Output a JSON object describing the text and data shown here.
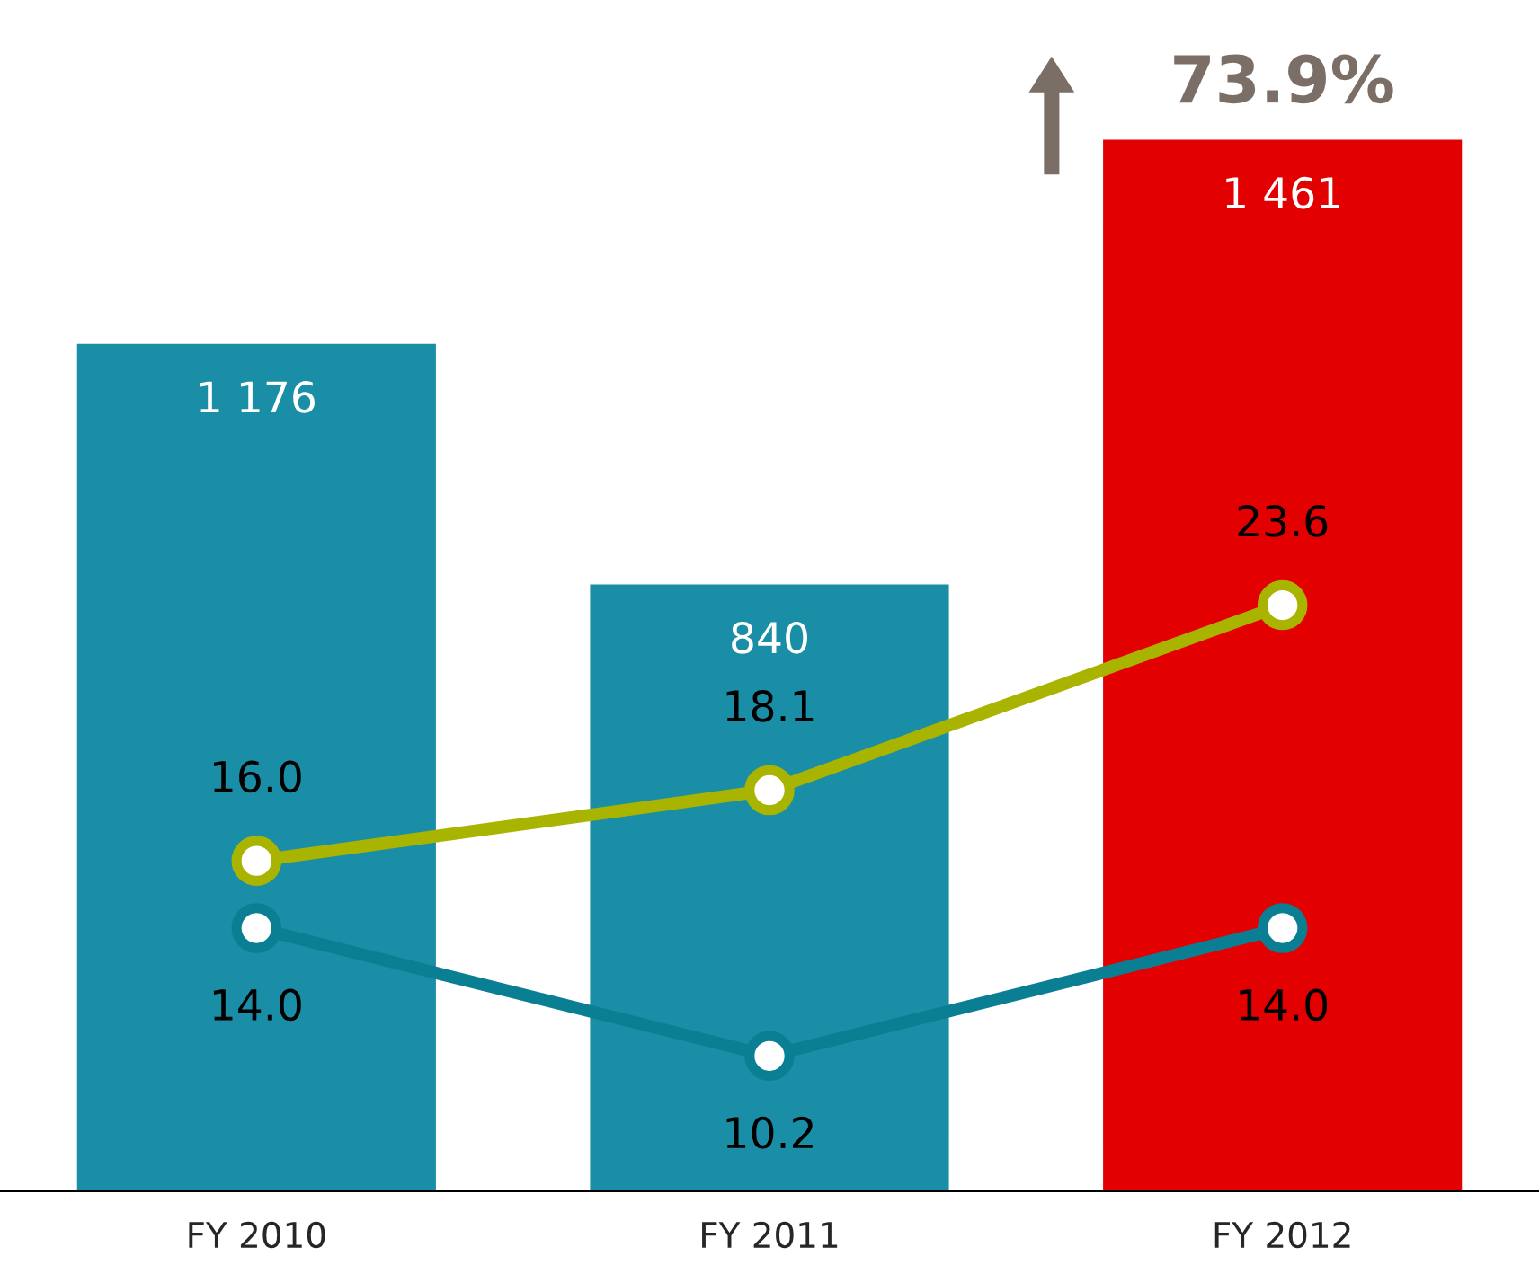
{
  "chart_data": {
    "type": "bar",
    "categories": [
      "FY 2010",
      "FY 2011",
      "FY 2012"
    ],
    "series": [
      {
        "colors": [
          "#1a8ea6",
          "#1a8ea6",
          "#e30000"
        ],
        "values": [
          1176,
          840,
          1461
        ]
      },
      {
        "type": "line",
        "axis": "y2",
        "color": "#a9b400",
        "values": [
          16.0,
          18.1,
          23.6
        ],
        "value_labels": [
          "16.0",
          "18.1",
          "23.6"
        ]
      },
      {
        "type": "line",
        "axis": "y2",
        "color": "#0a7f94",
        "values": [
          14.0,
          10.2,
          14.0
        ],
        "value_labels": [
          "14.0",
          "10.2",
          "14.0"
        ]
      }
    ],
    "tick_labels": "x",
    "data_labels": true,
    "marker": "circle",
    "line_style": "solid",
    "grid": false,
    "legend": false,
    "annotations": [
      {
        "text": "73.9%",
        "x": "FY 2012",
        "y": 1461
      }
    ]
  }
}
